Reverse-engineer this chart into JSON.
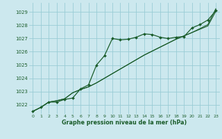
{
  "bg_color": "#cce8ee",
  "grid_color": "#99ccd6",
  "line_color": "#1a5c2a",
  "xlabel": "Graphe pression niveau de la mer (hPa)",
  "xlim": [
    -0.5,
    23.5
  ],
  "ylim": [
    1021.3,
    1029.7
  ],
  "yticks": [
    1022,
    1023,
    1024,
    1025,
    1026,
    1027,
    1028,
    1029
  ],
  "xticks": [
    0,
    1,
    2,
    3,
    4,
    5,
    6,
    7,
    8,
    9,
    10,
    11,
    12,
    13,
    14,
    15,
    16,
    17,
    18,
    19,
    20,
    21,
    22,
    23
  ],
  "line1_x": [
    0,
    1,
    2,
    3,
    4,
    5,
    6,
    7,
    8,
    9,
    10,
    11,
    12,
    13,
    14,
    15,
    16,
    17,
    18,
    19,
    20,
    21,
    22,
    23
  ],
  "line1_y": [
    1021.5,
    1021.8,
    1022.2,
    1022.2,
    1022.4,
    1022.5,
    1023.2,
    1023.5,
    1025.0,
    1025.7,
    1027.0,
    1026.9,
    1026.95,
    1027.1,
    1027.35,
    1027.3,
    1027.1,
    1027.0,
    1027.1,
    1027.15,
    1027.8,
    1028.05,
    1028.4,
    1029.1
  ],
  "line2_x": [
    0,
    1,
    2,
    3,
    4,
    5,
    6,
    7,
    8,
    9,
    10,
    11,
    12,
    13,
    14,
    15,
    16,
    17,
    18,
    19,
    20,
    21,
    22,
    23
  ],
  "line2_y": [
    1021.5,
    1021.8,
    1022.2,
    1022.3,
    1022.45,
    1022.9,
    1023.15,
    1023.35,
    1023.65,
    1024.0,
    1024.35,
    1024.7,
    1025.05,
    1025.4,
    1025.75,
    1026.05,
    1026.35,
    1026.65,
    1026.95,
    1027.2,
    1027.45,
    1027.7,
    1027.95,
    1029.05
  ],
  "line3_x": [
    0,
    1,
    2,
    3,
    4,
    5,
    6,
    7,
    8,
    9,
    10,
    11,
    12,
    13,
    14,
    15,
    16,
    17,
    18,
    19,
    20,
    21,
    22,
    23
  ],
  "line3_y": [
    1021.5,
    1021.8,
    1022.2,
    1022.3,
    1022.45,
    1022.9,
    1023.15,
    1023.35,
    1023.65,
    1024.0,
    1024.35,
    1024.7,
    1025.05,
    1025.4,
    1025.75,
    1026.05,
    1026.35,
    1026.65,
    1026.95,
    1027.2,
    1027.45,
    1027.75,
    1028.05,
    1029.25
  ]
}
